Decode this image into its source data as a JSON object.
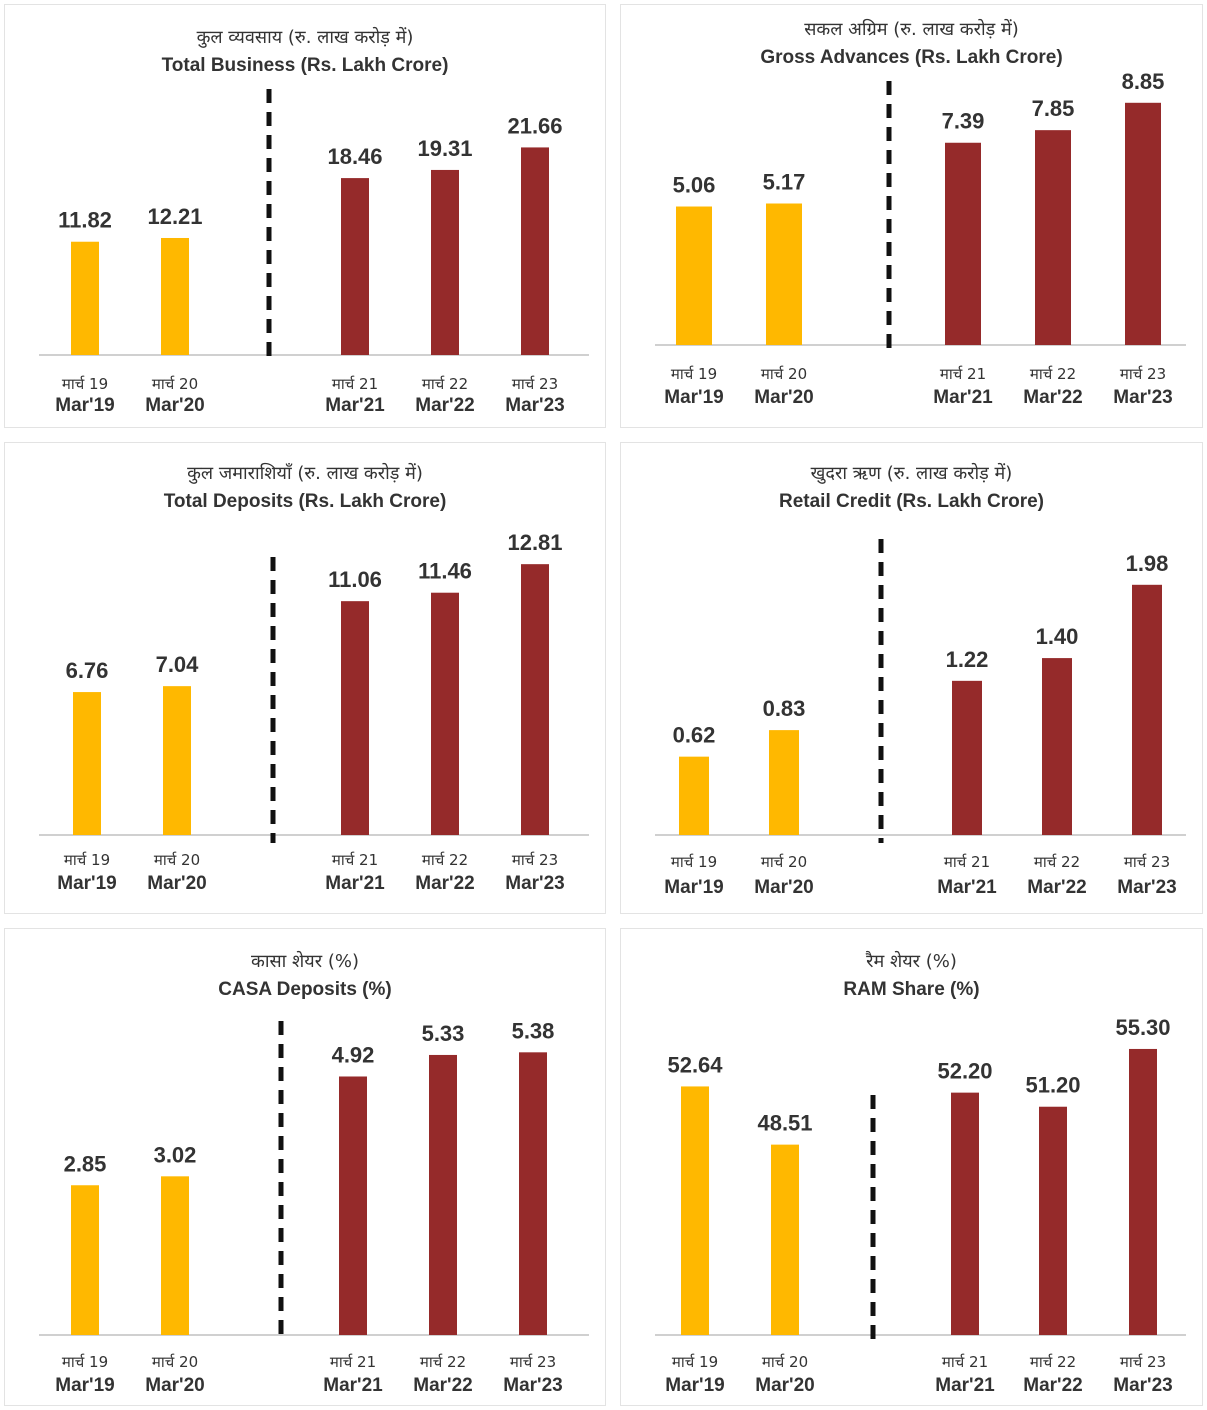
{
  "colors": {
    "pre": "#FFB800",
    "post": "#952A2A",
    "baseline": "#d0d0d0",
    "divider": "#111111"
  },
  "chart_data": [
    {
      "type": "bar",
      "title": "कुल व्यवसाय (रु. लाख करोड़ में)",
      "subtitle": "Total Business (Rs. Lakh Crore)",
      "categories": [
        "Mar'19",
        "Mar'20",
        "Mar'21",
        "Mar'22",
        "Mar'23"
      ],
      "categories_hi": [
        "मार्च 19",
        "मार्च 20",
        "मार्च 21",
        "मार्च 22",
        "मार्च 23"
      ],
      "values": [
        11.82,
        12.21,
        18.46,
        19.31,
        21.66
      ],
      "labels": [
        "11.82",
        "12.21",
        "18.46",
        "19.31",
        "21.66"
      ],
      "ylim": [
        0,
        24
      ]
    },
    {
      "type": "bar",
      "title": "सकल अग्रिम (रु. लाख करोड़ में)",
      "subtitle": "Gross Advances (Rs. Lakh Crore)",
      "categories": [
        "Mar'19",
        "Mar'20",
        "Mar'21",
        "Mar'22",
        "Mar'23"
      ],
      "categories_hi": [
        "मार्च 19",
        "मार्च 20",
        "मार्च 21",
        "मार्च 22",
        "मार्च 23"
      ],
      "values": [
        5.06,
        5.17,
        7.39,
        7.85,
        8.85
      ],
      "labels": [
        "5.06",
        "5.17",
        "7.39",
        "7.85",
        "8.85"
      ],
      "ylim": [
        0,
        9.5
      ]
    },
    {
      "type": "bar",
      "title": "कुल जमाराशियाँ (रु. लाख करोड़ में)",
      "subtitle": "Total Deposits (Rs. Lakh Crore)",
      "categories": [
        "Mar'19",
        "Mar'20",
        "Mar'21",
        "Mar'22",
        "Mar'23"
      ],
      "categories_hi": [
        "मार्च 19",
        "मार्च 20",
        "मार्च 21",
        "मार्च 22",
        "मार्च 23"
      ],
      "values": [
        6.76,
        7.04,
        11.06,
        11.46,
        12.81
      ],
      "labels": [
        "6.76",
        "7.04",
        "11.06",
        "11.46",
        "12.81"
      ],
      "ylim": [
        0,
        14
      ]
    },
    {
      "type": "bar",
      "title": "खुदरा ऋण (रु. लाख करोड़ में)",
      "subtitle": "Retail Credit (Rs. Lakh Crore)",
      "categories": [
        "Mar'19",
        "Mar'20",
        "Mar'21",
        "Mar'22",
        "Mar'23"
      ],
      "categories_hi": [
        "मार्च 19",
        "मार्च 20",
        "मार्च 21",
        "मार्च 22",
        "मार्च 23"
      ],
      "values": [
        0.62,
        0.83,
        1.22,
        1.4,
        1.98
      ],
      "labels": [
        "0.62",
        "0.83",
        "1.22",
        "1.40",
        "1.98"
      ],
      "ylim": [
        0,
        2.2
      ]
    },
    {
      "type": "bar",
      "title": "कासा शेयर (%)",
      "subtitle": "CASA Deposits (%)",
      "categories": [
        "Mar'19",
        "Mar'20",
        "Mar'21",
        "Mar'22",
        "Mar'23"
      ],
      "categories_hi": [
        "मार्च 19",
        "मार्च 20",
        "मार्च 21",
        "मार्च 22",
        "मार्च 23"
      ],
      "values": [
        2.85,
        3.02,
        4.92,
        5.33,
        5.38
      ],
      "labels": [
        "2.85",
        "3.02",
        "4.92",
        "5.33",
        "5.38"
      ],
      "ylim": [
        0,
        5.9
      ]
    },
    {
      "type": "bar",
      "title": "रैम शेयर (%)",
      "subtitle": "RAM Share (%)",
      "categories": [
        "Mar'19",
        "Mar'20",
        "Mar'21",
        "Mar'22",
        "Mar'23"
      ],
      "categories_hi": [
        "मार्च 19",
        "मार्च 20",
        "मार्च 21",
        "मार्च 22",
        "मार्च 23"
      ],
      "values": [
        52.64,
        48.51,
        52.2,
        51.2,
        55.3
      ],
      "labels": [
        "52.64",
        "48.51",
        "52.20",
        "51.20",
        "55.30"
      ],
      "ylim": [
        35,
        57
      ]
    }
  ]
}
